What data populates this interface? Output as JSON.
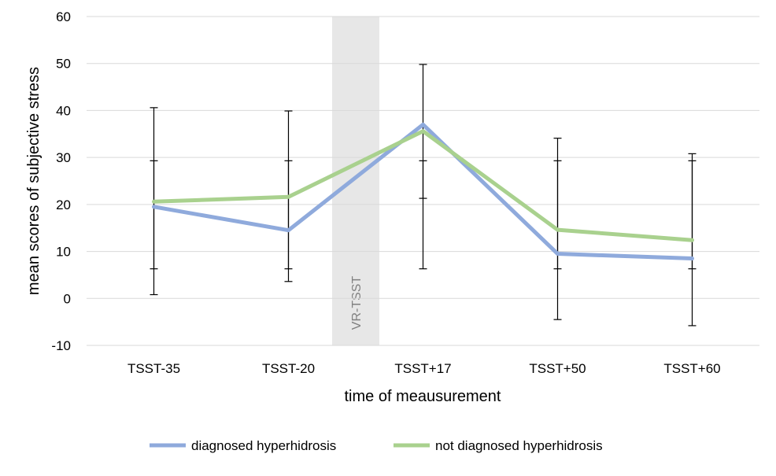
{
  "chart_data": {
    "type": "line",
    "title": "",
    "xlabel": "time of meausurement",
    "ylabel": "mean scores of subjective stress",
    "ylim": [
      -10,
      60
    ],
    "yticks": [
      -10,
      0,
      10,
      20,
      30,
      40,
      50,
      60
    ],
    "grid": true,
    "legend_position": "bottom",
    "categories": [
      "TSST-35",
      "TSST-20",
      "TSST+17",
      "TSST+50",
      "TSST+60"
    ],
    "shaded_region": {
      "label": "VR-TSST",
      "between": [
        "TSST-20",
        "TSST+17"
      ],
      "color": "#e7e7e7"
    },
    "series": [
      {
        "name": "diagnosed hyperhidrosis",
        "color": "#8faadc",
        "values": [
          19.5,
          14.5,
          37.0,
          9.5,
          8.5
        ],
        "error_low": [
          0.8,
          3.6,
          21.3,
          -4.5,
          -5.8
        ],
        "error_high": [
          40.6,
          39.9,
          49.8,
          34.1,
          30.8
        ]
      },
      {
        "name": "not diagnosed hyperhidrosis",
        "color": "#a9d18e",
        "values": [
          20.6,
          21.6,
          35.6,
          14.6,
          12.4
        ],
        "error_low": [
          6.3,
          6.3,
          6.3,
          6.3,
          6.3
        ],
        "error_high": [
          29.3,
          29.3,
          29.3,
          29.3,
          29.3
        ]
      }
    ]
  }
}
